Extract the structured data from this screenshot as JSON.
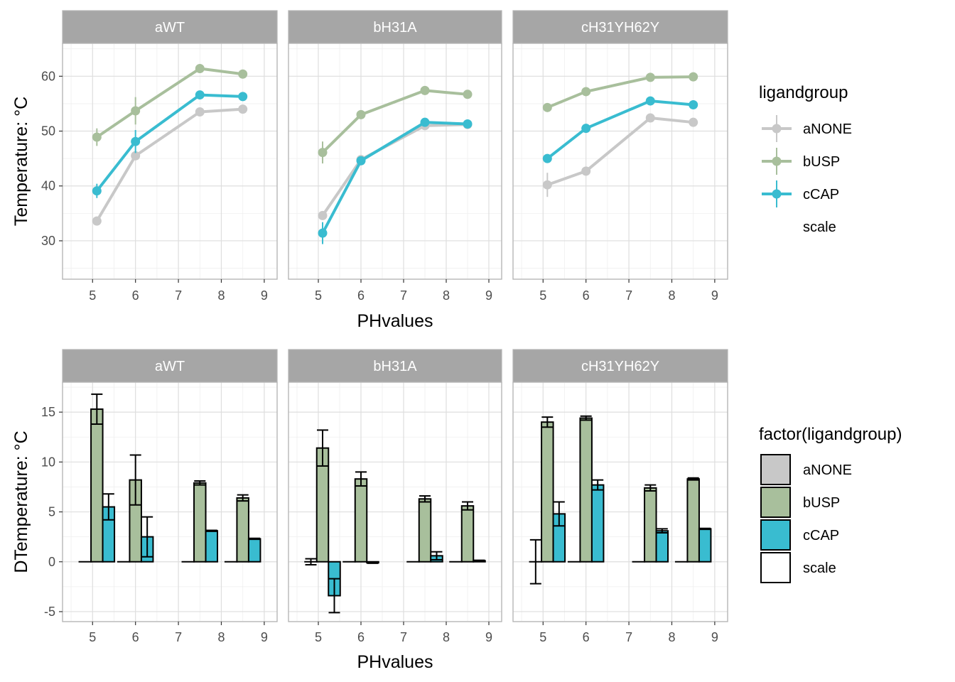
{
  "chart_data": [
    {
      "type": "line",
      "facets": [
        "aWT",
        "bH31A",
        "cH31YH62Y"
      ],
      "xlabel": "PHvalues",
      "ylabel": "Temperature: °C",
      "xlim": [
        4.3,
        9.3
      ],
      "ylim": [
        23,
        66
      ],
      "xticks": [
        5,
        6,
        7,
        8,
        9
      ],
      "yticks": [
        30,
        40,
        50,
        60
      ],
      "grid": true,
      "legend": {
        "position": "right",
        "title": "ligandgroup",
        "entries": [
          "aNONE",
          "bUSP",
          "cCAP",
          "scale"
        ]
      },
      "series": [
        {
          "name": "aNONE",
          "color": "#c8c8c8",
          "panels": {
            "aWT": {
              "x": [
                5.1,
                6,
                7.5,
                8.5
              ],
              "y": [
                33.6,
                45.5,
                53.5,
                54.0
              ],
              "err": [
                0.6,
                0.6,
                0.4,
                0.4
              ]
            },
            "bH31A": {
              "x": [
                5.1,
                6,
                7.5,
                8.5
              ],
              "y": [
                34.6,
                44.8,
                51.0,
                51.2
              ],
              "err": [
                0.6,
                0.6,
                0.4,
                0.4
              ]
            },
            "cH31YH62Y": {
              "x": [
                5.1,
                6,
                7.5,
                8.5
              ],
              "y": [
                40.2,
                42.7,
                52.4,
                51.6
              ],
              "err": [
                2.2,
                0.6,
                0.4,
                0.4
              ]
            }
          }
        },
        {
          "name": "bUSP",
          "color": "#a8bf9c",
          "panels": {
            "aWT": {
              "x": [
                5.1,
                6,
                7.5,
                8.5
              ],
              "y": [
                48.9,
                53.7,
                61.4,
                60.4
              ],
              "err": [
                1.6,
                2.5,
                0.4,
                0.4
              ]
            },
            "bH31A": {
              "x": [
                5.1,
                6,
                7.5,
                8.5
              ],
              "y": [
                46.1,
                53.0,
                57.4,
                56.7
              ],
              "err": [
                2.0,
                0.6,
                0.4,
                0.4
              ]
            },
            "cH31YH62Y": {
              "x": [
                5.1,
                6,
                7.5,
                8.5
              ],
              "y": [
                54.3,
                57.2,
                59.8,
                59.9
              ],
              "err": [
                0.4,
                0.4,
                0.4,
                0.4
              ]
            }
          }
        },
        {
          "name": "cCAP",
          "color": "#39bcd0",
          "panels": {
            "aWT": {
              "x": [
                5.1,
                6,
                7.5,
                8.5
              ],
              "y": [
                39.1,
                48.1,
                56.6,
                56.3
              ],
              "err": [
                1.3,
                2.1,
                0.4,
                0.4
              ]
            },
            "bH31A": {
              "x": [
                5.1,
                6,
                7.5,
                8.5
              ],
              "y": [
                31.4,
                44.6,
                51.6,
                51.3
              ],
              "err": [
                2.0,
                0.6,
                0.4,
                0.4
              ]
            },
            "cH31YH62Y": {
              "x": [
                5.1,
                6,
                7.5,
                8.5
              ],
              "y": [
                45.0,
                50.5,
                55.5,
                54.8
              ],
              "err": [
                0.8,
                0.4,
                0.4,
                0.4
              ]
            }
          }
        }
      ]
    },
    {
      "type": "bar",
      "facets": [
        "aWT",
        "bH31A",
        "cH31YH62Y"
      ],
      "xlabel": "PHvalues",
      "ylabel": "DTemperature: °C",
      "xlim": [
        4.3,
        9.3
      ],
      "ylim": [
        -6,
        18
      ],
      "xticks": [
        5,
        6,
        7,
        8,
        9
      ],
      "yticks": [
        -5,
        0,
        5,
        10,
        15
      ],
      "grid": true,
      "legend": {
        "position": "right",
        "title": "factor(ligandgroup)",
        "entries": [
          "aNONE",
          "bUSP",
          "cCAP",
          "scale"
        ]
      },
      "categories": [
        5.1,
        6,
        7.5,
        8.5
      ],
      "series": [
        {
          "name": "aNONE",
          "color": "#c8c8c8",
          "panels": {
            "aWT": {
              "values": [
                0,
                0,
                0,
                0
              ],
              "err": [
                0,
                0,
                0,
                0
              ]
            },
            "bH31A": {
              "values": [
                0,
                0,
                0,
                0
              ],
              "err": [
                0.3,
                0,
                0,
                0
              ]
            },
            "cH31YH62Y": {
              "values": [
                0,
                0,
                0,
                0
              ],
              "err": [
                2.2,
                0,
                0,
                0
              ]
            }
          }
        },
        {
          "name": "bUSP",
          "color": "#a8bf9c",
          "panels": {
            "aWT": {
              "values": [
                15.3,
                8.2,
                7.9,
                6.4
              ],
              "err": [
                1.5,
                2.5,
                0.2,
                0.3
              ]
            },
            "bH31A": {
              "values": [
                11.4,
                8.3,
                6.3,
                5.6
              ],
              "err": [
                1.8,
                0.7,
                0.3,
                0.4
              ]
            },
            "cH31YH62Y": {
              "values": [
                14.0,
                14.4,
                7.4,
                8.3
              ],
              "err": [
                0.5,
                0.2,
                0.3,
                0.1
              ]
            }
          }
        },
        {
          "name": "cCAP",
          "color": "#39bcd0",
          "panels": {
            "aWT": {
              "values": [
                5.5,
                2.5,
                3.1,
                2.3
              ],
              "err": [
                1.3,
                2.0,
                0.05,
                0.05
              ]
            },
            "bH31A": {
              "values": [
                -3.4,
                -0.1,
                0.6,
                0.1
              ],
              "err": [
                1.7,
                0.05,
                0.4,
                0.05
              ]
            },
            "cH31YH62Y": {
              "values": [
                4.8,
                7.7,
                3.1,
                3.3
              ],
              "err": [
                1.2,
                0.5,
                0.2,
                0.05
              ]
            }
          }
        }
      ]
    }
  ]
}
